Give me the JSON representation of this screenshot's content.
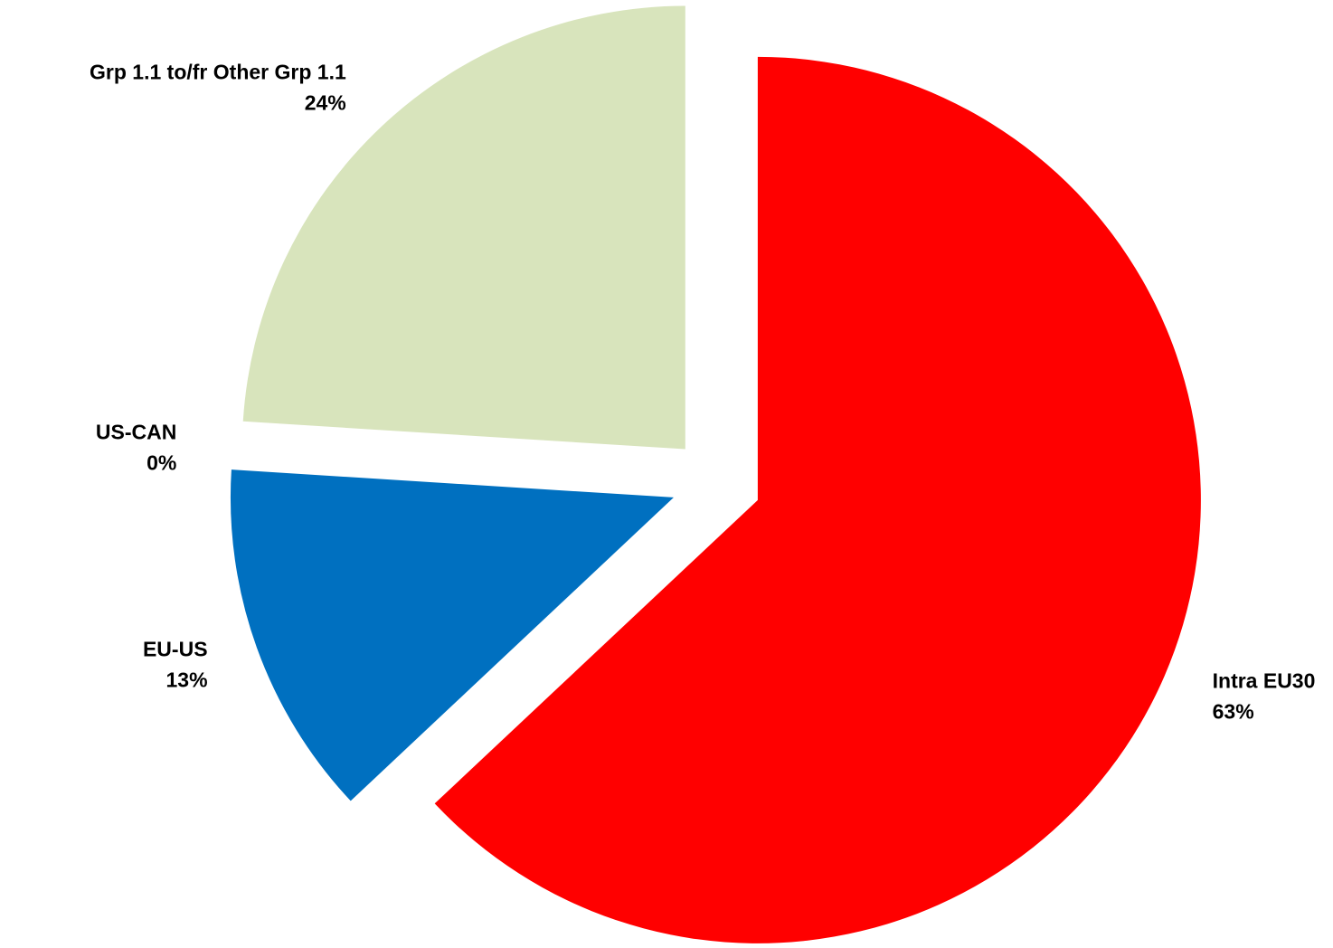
{
  "chart_data": {
    "type": "pie",
    "categories": [
      "Intra EU30",
      "EU-US",
      "US-CAN",
      "Grp 1.1 to/fr Other Grp 1.1"
    ],
    "values": [
      63,
      13,
      0,
      24
    ],
    "value_labels": [
      "63%",
      "13%",
      "0%",
      "24%"
    ],
    "colors": [
      "#ff0000",
      "#0070c0",
      "#7030a0",
      "#d8e4bc"
    ],
    "exploded": true
  }
}
